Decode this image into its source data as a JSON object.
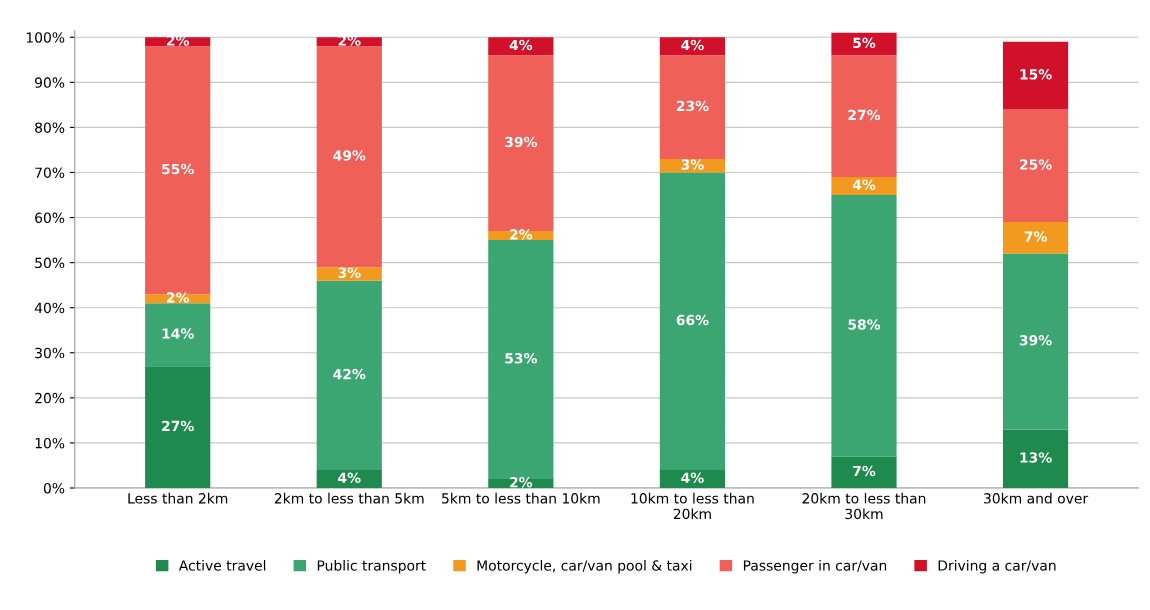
{
  "chart_data": {
    "type": "bar",
    "stacked": true,
    "categories": [
      "Less than 2km",
      "2km to less than 5km",
      "5km to less than 10km",
      "10km to less than\n20km",
      "20km to less than\n30km",
      "30km and over"
    ],
    "series": [
      {
        "name": "Active travel",
        "color": "#1f8a4e",
        "values": [
          27,
          4,
          2,
          4,
          7,
          13
        ],
        "value_labels": [
          "27%",
          "4%",
          "2%",
          "4%",
          "7%",
          "13%"
        ]
      },
      {
        "name": "Public transport",
        "color": "#3ca673",
        "values": [
          14,
          42,
          53,
          66,
          58,
          39
        ],
        "value_labels": [
          "14%",
          "42%",
          "53%",
          "66%",
          "58%",
          "39%"
        ]
      },
      {
        "name": "Motorcycle, car/van pool & taxi",
        "color": "#f29a1f",
        "values": [
          2,
          3,
          2,
          3,
          4,
          7
        ],
        "value_labels": [
          "2%",
          "3%",
          "2%",
          "3%",
          "4%",
          "7%"
        ]
      },
      {
        "name": "Passenger in car/van",
        "color": "#ef6058",
        "values": [
          55,
          49,
          39,
          23,
          27,
          25
        ],
        "value_labels": [
          "55%",
          "49%",
          "39%",
          "23%",
          "27%",
          "25%"
        ]
      },
      {
        "name": "Driving a car/van",
        "color": "#d11029",
        "values": [
          2,
          2,
          4,
          4,
          5,
          15
        ],
        "value_labels": [
          "2%",
          "2%",
          "4%",
          "4%",
          "5%",
          "15%"
        ]
      }
    ],
    "ylim": [
      0,
      101.5
    ],
    "yticks": [
      {
        "value": 0,
        "label": "0%"
      },
      {
        "value": 10,
        "label": "10%"
      },
      {
        "value": 20,
        "label": "20%"
      },
      {
        "value": 30,
        "label": "30%"
      },
      {
        "value": 40,
        "label": "40%"
      },
      {
        "value": 50,
        "label": "50%"
      },
      {
        "value": 60,
        "label": "60%"
      },
      {
        "value": 70,
        "label": "70%"
      },
      {
        "value": 80,
        "label": "80%"
      },
      {
        "value": 90,
        "label": "90%"
      },
      {
        "value": 100,
        "label": "100%"
      }
    ],
    "grid": "y",
    "legend": "bottom"
  }
}
